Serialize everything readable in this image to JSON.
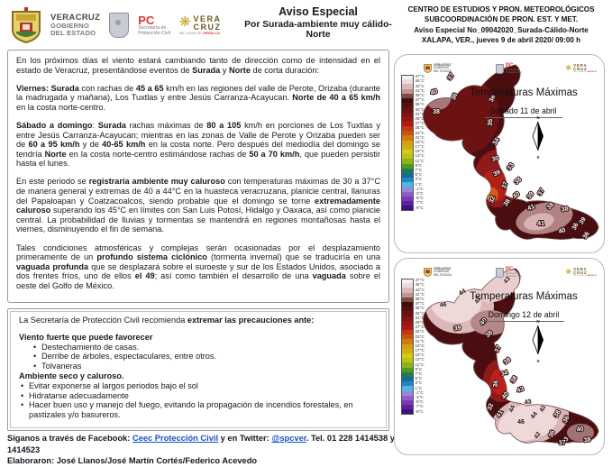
{
  "header": {
    "logo_veracruz": {
      "name": "VERACRUZ",
      "line2": "GOBIERNO",
      "line3": "DEL ESTADO"
    },
    "logo_pc": {
      "abbr": "PC",
      "line1": "Secretaría de",
      "line2": "Protección Civil"
    },
    "logo_brand": {
      "line1": "VERA",
      "line2": "CRUZ",
      "sparkle": "❋",
      "tagline_pre": "ME LLENA DE ",
      "tagline_word": "ORGULLO"
    },
    "title": {
      "line1": "Aviso Especial",
      "line2": "Por Surada-ambiente muy cálido-Norte"
    },
    "org": {
      "line1": "CENTRO DE ESTUDIOS Y PRON. METEOROLÓGICOS",
      "line2": "SUBCOORDINACIÓN DE PRON.  EST. Y MET.",
      "line3": "Aviso Especial  No_09042020_Surada-Cálido-Norte",
      "line4": "XALAPA, VER., jueves 9 de abril 2020/ 09:00 h"
    }
  },
  "forecast": {
    "paragraphs": [
      [
        {
          "b": 0,
          "t": "En los próximos días el viento estará cambiando tanto de dirección como de intensidad en el estado de Veracruz, presentándose eventos de "
        },
        {
          "b": 1,
          "t": "Surada"
        },
        {
          "b": 0,
          "t": " y "
        },
        {
          "b": 1,
          "t": "Norte"
        },
        {
          "b": 0,
          "t": " de corta duración:"
        }
      ],
      [
        {
          "b": 1,
          "t": "Viernes: Surada"
        },
        {
          "b": 0,
          "t": " con rachas de "
        },
        {
          "b": 1,
          "t": "45 a 65"
        },
        {
          "b": 0,
          "t": " km/h en las regiones del valle de Perote, Orizaba (durante la madrugada y mañana), Los Tuxtlas y entre Jesús Carranza-Acayucan. "
        },
        {
          "b": 1,
          "t": "Norte de 40 a 65 km/h"
        },
        {
          "b": 0,
          "t": " en la costa norte-centro."
        }
      ],
      [
        {
          "b": 1,
          "t": "Sábado a domingo"
        },
        {
          "b": 0,
          "t": ": "
        },
        {
          "b": 1,
          "t": "Surada"
        },
        {
          "b": 0,
          "t": " rachas máximas de "
        },
        {
          "b": 1,
          "t": "80 a 105"
        },
        {
          "b": 0,
          "t": " km/h en porciones de Los Tuxtlas y entre Jesús Carranza-Acayucan; mientras en las zonas de Valle de Perote y Orizaba pueden ser de "
        },
        {
          "b": 1,
          "t": "60 a 95 km/h"
        },
        {
          "b": 0,
          "t": " y de "
        },
        {
          "b": 1,
          "t": "40-65 km/h"
        },
        {
          "b": 0,
          "t": " en la costa norte. Pero después del mediodía del domingo se tendría "
        },
        {
          "b": 1,
          "t": "Norte"
        },
        {
          "b": 0,
          "t": " en la costa norte-centro estimándose rachas de "
        },
        {
          "b": 1,
          "t": "50 a 70 km/h"
        },
        {
          "b": 0,
          "t": ", que pueden persistir hasta el lunes."
        }
      ],
      [
        {
          "b": 0,
          "t": "En este periodo se "
        },
        {
          "b": 1,
          "t": "registraría ambiente muy caluroso"
        },
        {
          "b": 0,
          "t": " con temperaturas máximas de 30 a 37°C de manera general y extremas de 40 a 44°C en la huasteca veracruzana, planicie central, llanuras del Papaloapan y Coatzacoalcos, siendo probable que el domingo se torne "
        },
        {
          "b": 1,
          "t": "extremadamente caluroso"
        },
        {
          "b": 0,
          "t": " superando los 45°C en límites con San Luis Potosí, Hidalgo y Oaxaca, así como planicie central. La probabilidad de lluvias y tormentas se mantendrá en regiones montañosas hasta el viernes, disminuyendo el fin de semana."
        }
      ],
      [
        {
          "b": 0,
          "t": "Tales condiciones atmosféricas y complejas serán ocasionadas por el desplazamiento primeramente de un "
        },
        {
          "b": 1,
          "t": "profundo sistema ciclónico"
        },
        {
          "b": 0,
          "t": " (tormenta invernal) que se traduciría en una "
        },
        {
          "b": 1,
          "t": "vaguada profunda"
        },
        {
          "b": 0,
          "t": " que se desplazará sobre el suroeste y sur de los Estados Unidos, asociado a dos frentes fríos, uno de ellos "
        },
        {
          "b": 1,
          "t": "el 49"
        },
        {
          "b": 0,
          "t": "; así como también el desarrollo de una "
        },
        {
          "b": 1,
          "t": "vaguada"
        },
        {
          "b": 0,
          "t": " sobre el oeste del Golfo de México."
        }
      ]
    ]
  },
  "recommendations": {
    "intro_normal": "La Secretaría de Protección Civil recomienda ",
    "intro_bold": "extremar las precauciones ante:",
    "sections": [
      {
        "title": "Viento fuerte que puede favorecer",
        "bullets": [
          "Destechamiento de casas.",
          "Derribe de árboles, espectaculares, entre otros.",
          "Tolvaneras"
        ]
      },
      {
        "title": "Ambiente seco y caluroso.",
        "bullets": [
          "Evitar exponerse al largos periodos bajo el sol",
          "Hidratarse adecuadamente",
          "Hacer buen uso y manejo del fuego, evitando la propagación de incendios forestales, en pastizales y/o basureros."
        ]
      }
    ]
  },
  "footer": {
    "follow_pre": "Síganos a través de Facebook: ",
    "facebook_link": "Ceec Protección Civil",
    "follow_mid": " y en Twitter: ",
    "twitter_link": "@spcver",
    "follow_post": ".  Tel.  01 228 1414538 y 1414523",
    "credits": "Elaboraron: José Llanos/José Martín Cortés/Federico Acevedo",
    "link_color": "#1550c8"
  },
  "maps": {
    "base_color": "#4a0e10",
    "compass": {
      "n": "N",
      "s": "S"
    },
    "scale": [
      {
        "t": "47°C",
        "c": "#f7efef"
      },
      {
        "t": "45°C",
        "c": "#eedada"
      },
      {
        "t": "43°C",
        "c": "#dcb9b9"
      },
      {
        "t": "41°C",
        "c": "#c19393"
      },
      {
        "t": "39°C",
        "c": "#7d4a42"
      },
      {
        "t": "37°C",
        "c": "#3f0d0d"
      },
      {
        "t": "35°C",
        "c": "#540f0f"
      },
      {
        "t": "33°C",
        "c": "#6a1111"
      },
      {
        "t": "31°C",
        "c": "#821313"
      },
      {
        "t": "29°C",
        "c": "#9a1515"
      },
      {
        "t": "27°C",
        "c": "#b21717"
      },
      {
        "t": "25°C",
        "c": "#c53513"
      },
      {
        "t": "23°C",
        "c": "#c1560f"
      },
      {
        "t": "21°C",
        "c": "#cd7a10"
      },
      {
        "t": "19°C",
        "c": "#d99e12"
      },
      {
        "t": "17°C",
        "c": "#cfae12"
      },
      {
        "t": "15°C",
        "c": "#d8c813"
      },
      {
        "t": "13°C",
        "c": "#b8c414"
      },
      {
        "t": "11°C",
        "c": "#8db31a"
      },
      {
        "t": "9°C",
        "c": "#4f9a1e"
      },
      {
        "t": "7°C",
        "c": "#1f7d4a"
      },
      {
        "t": "5°C",
        "c": "#156a9a"
      },
      {
        "t": "3°C",
        "c": "#1d86c8"
      },
      {
        "t": "1°C",
        "c": "#52b4e0"
      },
      {
        "t": "-1°C",
        "c": "#9a86d8"
      },
      {
        "t": "-3°C",
        "c": "#8f5cc8"
      },
      {
        "t": "-5°C",
        "c": "#7a3ab8"
      },
      {
        "t": "-7°C",
        "c": "#5c20a0"
      },
      {
        "t": "-9°C",
        "c": "#3f1080"
      }
    ],
    "cards": [
      {
        "title": "Temperaturas Máximas",
        "subtitle": "Sábado 11 de abril",
        "labels": [
          [
            37,
            50,
            16,
            -60,
            "w"
          ],
          [
            40,
            30,
            34,
            -15,
            "w"
          ],
          [
            36,
            54,
            38,
            -70,
            "w"
          ],
          [
            38,
            32,
            56,
            0,
            "w"
          ],
          [
            35,
            94,
            66,
            -85,
            "w"
          ],
          [
            34,
            100,
            88,
            -60,
            "w"
          ],
          [
            36,
            96,
            40,
            -70,
            "w"
          ],
          [
            30,
            98,
            108,
            -15,
            "w"
          ],
          [
            33,
            116,
            116,
            -55,
            "w"
          ],
          [
            39,
            100,
            124,
            -25,
            "w"
          ],
          [
            37,
            110,
            136,
            -70,
            "w"
          ],
          [
            38,
            124,
            132,
            -45,
            "w"
          ],
          [
            32,
            96,
            152,
            -70,
            "w"
          ],
          [
            38,
            112,
            156,
            -55,
            "w"
          ],
          [
            40,
            122,
            148,
            -40,
            "w"
          ],
          [
            39,
            138,
            148,
            -50,
            "w"
          ],
          [
            37,
            150,
            144,
            -60,
            "w"
          ],
          [
            41,
            138,
            162,
            -25,
            "w"
          ],
          [
            38,
            160,
            160,
            -45,
            "w"
          ],
          [
            38,
            175,
            164,
            -10,
            "w"
          ],
          [
            41,
            148,
            180,
            0,
            "w"
          ],
          [
            40,
            172,
            188,
            -15,
            "w"
          ],
          [
            36,
            188,
            182,
            -65,
            "w"
          ],
          [
            39,
            196,
            176,
            -55,
            "w"
          ],
          [
            36,
            200,
            192,
            -60,
            "w"
          ]
        ]
      },
      {
        "title": "Temperaturas Máximas",
        "subtitle": "Domingo 12 de abril",
        "labels": [
          [
            43,
            112,
            16,
            -50,
            "d"
          ],
          [
            44,
            62,
            30,
            -30,
            "d"
          ],
          [
            46,
            40,
            44,
            -10,
            "d"
          ],
          [
            42,
            80,
            38,
            -60,
            "d"
          ],
          [
            40,
            86,
            62,
            -50,
            "w"
          ],
          [
            39,
            56,
            70,
            -10,
            "w"
          ],
          [
            38,
            92,
            76,
            -45,
            "w"
          ],
          [
            37,
            102,
            92,
            -65,
            "w"
          ],
          [
            38,
            112,
            106,
            -40,
            "w"
          ],
          [
            34,
            108,
            120,
            -15,
            "w"
          ],
          [
            36,
            100,
            130,
            -85,
            "w"
          ],
          [
            38,
            120,
            126,
            -60,
            "w"
          ],
          [
            40,
            110,
            144,
            -50,
            "w"
          ],
          [
            43,
            126,
            138,
            -20,
            "w"
          ],
          [
            32,
            94,
            156,
            -70,
            "w"
          ],
          [
            41,
            104,
            164,
            -60,
            "w"
          ],
          [
            44,
            118,
            158,
            -70,
            "d"
          ],
          [
            43,
            134,
            152,
            -10,
            "d"
          ],
          [
            46,
            126,
            174,
            0,
            "d"
          ],
          [
            44,
            142,
            166,
            -50,
            "d"
          ],
          [
            42,
            152,
            158,
            -65,
            "d"
          ],
          [
            38,
            168,
            164,
            -60,
            "w"
          ],
          [
            36,
            178,
            170,
            -65,
            "w"
          ],
          [
            42,
            146,
            188,
            -60,
            "d"
          ],
          [
            36,
            162,
            186,
            -70,
            "w"
          ],
          [
            38,
            176,
            194,
            -40,
            "w"
          ],
          [
            40,
            192,
            182,
            -10,
            "w"
          ],
          [
            37,
            172,
            197,
            -5,
            "w"
          ],
          [
            38,
            200,
            194,
            -10,
            "w"
          ]
        ]
      }
    ]
  }
}
